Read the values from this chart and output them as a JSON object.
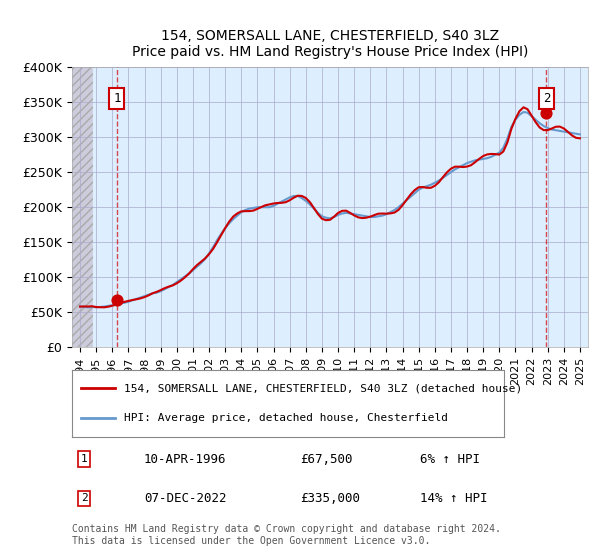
{
  "title": "154, SOMERSALL LANE, CHESTERFIELD, S40 3LZ",
  "subtitle": "Price paid vs. HM Land Registry's House Price Index (HPI)",
  "legend_entry1": "154, SOMERSALL LANE, CHESTERFIELD, S40 3LZ (detached house)",
  "legend_entry2": "HPI: Average price, detached house, Chesterfield",
  "note1_num": "1",
  "note1_date": "10-APR-1996",
  "note1_price": "£67,500",
  "note1_hpi": "6% ↑ HPI",
  "note2_num": "2",
  "note2_date": "07-DEC-2022",
  "note2_price": "£335,000",
  "note2_hpi": "14% ↑ HPI",
  "footer": "Contains HM Land Registry data © Crown copyright and database right 2024.\nThis data is licensed under the Open Government Licence v3.0.",
  "sale1_year": 1996.28,
  "sale1_price": 67500,
  "sale2_year": 2022.92,
  "sale2_price": 335000,
  "hpi_line_color": "#6699cc",
  "price_line_color": "#cc0000",
  "sale_dot_color": "#cc0000",
  "bg_plot_color": "#ddeeff",
  "bg_hatch_color": "#ccccdd",
  "grid_color": "#aaaacc",
  "ylim": [
    0,
    400000
  ],
  "xlim_start": 1993.5,
  "xlim_end": 2025.5,
  "yticks": [
    0,
    50000,
    100000,
    150000,
    200000,
    250000,
    300000,
    350000,
    400000
  ],
  "ytick_labels": [
    "£0",
    "£50K",
    "£100K",
    "£150K",
    "£200K",
    "£250K",
    "£300K",
    "£350K",
    "£400K"
  ],
  "xticks": [
    1994,
    1995,
    1996,
    1997,
    1998,
    1999,
    2000,
    2001,
    2002,
    2003,
    2004,
    2005,
    2006,
    2007,
    2008,
    2009,
    2010,
    2011,
    2012,
    2013,
    2014,
    2015,
    2016,
    2017,
    2018,
    2019,
    2020,
    2021,
    2022,
    2023,
    2024,
    2025
  ]
}
